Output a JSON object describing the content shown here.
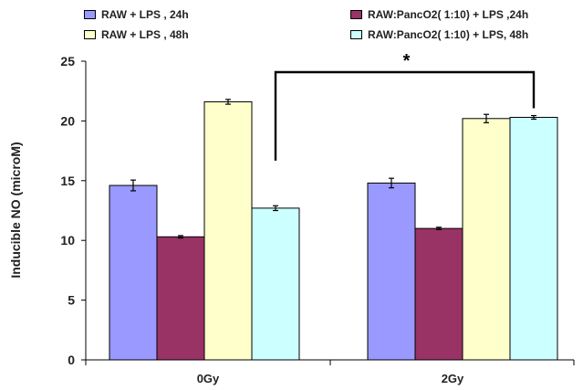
{
  "chart_data": {
    "type": "bar",
    "categories": [
      "0Gy",
      "2Gy"
    ],
    "series": [
      {
        "name": "RAW + LPS , 24h",
        "values": [
          14.6,
          14.8
        ],
        "errors": [
          0.45,
          0.4
        ],
        "color": "#9999ff"
      },
      {
        "name": "RAW:PancO2( 1:10) + LPS ,24h",
        "values": [
          10.3,
          11.0
        ],
        "errors": [
          0.1,
          0.1
        ],
        "color": "#993366"
      },
      {
        "name": "RAW + LPS , 48h",
        "values": [
          21.6,
          20.2
        ],
        "errors": [
          0.2,
          0.35
        ],
        "color": "#ffffcc"
      },
      {
        "name": "RAW:PancO2( 1:10) + LPS, 48h",
        "values": [
          12.7,
          20.3
        ],
        "errors": [
          0.2,
          0.15
        ],
        "color": "#ccffff"
      }
    ],
    "ylabel": "Inducible NO (microM)",
    "xlabel": "",
    "ylim": [
      0,
      25
    ],
    "yticks": [
      0,
      5,
      10,
      15,
      20,
      25
    ],
    "grid": false,
    "legend_position": "top",
    "annotation": "*"
  }
}
